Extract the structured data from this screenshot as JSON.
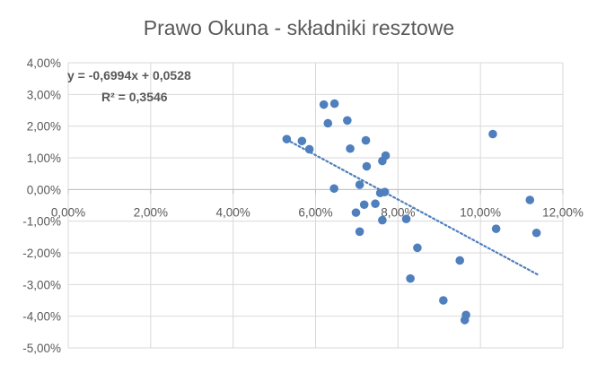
{
  "chart_data": {
    "type": "scatter",
    "title": "Prawo Okuna - składniki resztowe",
    "xlabel": "",
    "ylabel": "",
    "xlim": [
      0,
      0.12
    ],
    "ylim": [
      -0.05,
      0.04
    ],
    "x_ticks": [
      0,
      0.02,
      0.04,
      0.06,
      0.08,
      0.1,
      0.12
    ],
    "x_tick_labels": [
      "0,00%",
      "2,00%",
      "4,00%",
      "6,00%",
      "8,00%",
      "10,00%",
      "12,00%"
    ],
    "y_ticks": [
      0.04,
      0.03,
      0.02,
      0.01,
      0,
      -0.01,
      -0.02,
      -0.03,
      -0.04,
      -0.05
    ],
    "y_tick_labels": [
      "4,00%",
      "3,00%",
      "2,00%",
      "1,00%",
      "0,00%",
      "-1,00%",
      "-2,00%",
      "-3,00%",
      "-4,00%",
      "-5,00%"
    ],
    "grid": true,
    "marker_color": "#4f7fbd",
    "trendline": {
      "type": "linear",
      "slope": -0.6994,
      "intercept": 0.0528,
      "x_range": [
        0.053,
        0.114
      ],
      "style": "dotted",
      "color": "#4f7fbd",
      "equation_label": "y = -0,6994x + 0,0528",
      "r2_label": "R² = 0,3546"
    },
    "series": [
      {
        "points": [
          [
            0.053,
            0.0159
          ],
          [
            0.0567,
            0.0153
          ],
          [
            0.0585,
            0.0127
          ],
          [
            0.062,
            0.0268
          ],
          [
            0.063,
            0.0209
          ],
          [
            0.0646,
            0.0271
          ],
          [
            0.0645,
            0.0003
          ],
          [
            0.0677,
            0.0218
          ],
          [
            0.0684,
            0.0129
          ],
          [
            0.0698,
            -0.0073
          ],
          [
            0.0707,
            0.0015
          ],
          [
            0.0707,
            -0.0133
          ],
          [
            0.0718,
            -0.0048
          ],
          [
            0.0722,
            0.0155
          ],
          [
            0.0724,
            0.0073
          ],
          [
            0.0745,
            -0.0045
          ],
          [
            0.0757,
            -0.0011
          ],
          [
            0.0762,
            0.009
          ],
          [
            0.0762,
            -0.0097
          ],
          [
            0.0768,
            -0.0008
          ],
          [
            0.077,
            0.0107
          ],
          [
            0.082,
            -0.0093
          ],
          [
            0.083,
            -0.0281
          ],
          [
            0.0847,
            -0.0184
          ],
          [
            0.091,
            -0.035
          ],
          [
            0.095,
            -0.0224
          ],
          [
            0.0962,
            -0.0412
          ],
          [
            0.0965,
            -0.0396
          ],
          [
            0.103,
            0.0175
          ],
          [
            0.1038,
            -0.0124
          ],
          [
            0.112,
            -0.0033
          ],
          [
            0.1136,
            -0.0137
          ]
        ]
      }
    ]
  }
}
